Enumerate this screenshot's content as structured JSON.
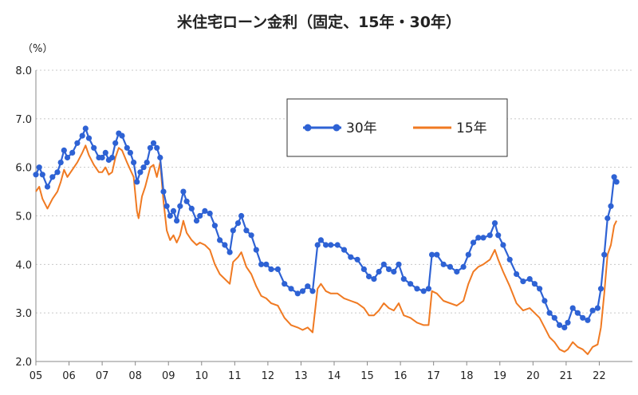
{
  "chart_data": {
    "type": "line",
    "title": "米住宅ローン金利（固定、15年・30年）",
    "unit_label": "（%）",
    "ylim": [
      2.0,
      8.0
    ],
    "y_ticks": [
      "2.0",
      "3.0",
      "4.0",
      "5.0",
      "6.0",
      "7.0",
      "8.0"
    ],
    "x_range": [
      2005,
      2023
    ],
    "x_ticks": [
      "05",
      "06",
      "07",
      "08",
      "09",
      "10",
      "11",
      "12",
      "13",
      "14",
      "15",
      "16",
      "17",
      "18",
      "19",
      "20",
      "21",
      "22"
    ],
    "grid": "horizontal-dotted",
    "legend_position": "top-right",
    "colors": {
      "series_30": "#2e62d4",
      "series_15": "#f07a22"
    },
    "series": [
      {
        "name": "30年",
        "marker": "circle",
        "points": [
          [
            2005.0,
            5.85
          ],
          [
            2005.1,
            6.0
          ],
          [
            2005.2,
            5.85
          ],
          [
            2005.35,
            5.6
          ],
          [
            2005.5,
            5.8
          ],
          [
            2005.65,
            5.9
          ],
          [
            2005.75,
            6.1
          ],
          [
            2005.85,
            6.35
          ],
          [
            2005.95,
            6.2
          ],
          [
            2006.1,
            6.3
          ],
          [
            2006.25,
            6.5
          ],
          [
            2006.4,
            6.65
          ],
          [
            2006.5,
            6.8
          ],
          [
            2006.6,
            6.6
          ],
          [
            2006.75,
            6.4
          ],
          [
            2006.9,
            6.2
          ],
          [
            2007.0,
            6.2
          ],
          [
            2007.1,
            6.3
          ],
          [
            2007.2,
            6.15
          ],
          [
            2007.3,
            6.2
          ],
          [
            2007.4,
            6.5
          ],
          [
            2007.5,
            6.7
          ],
          [
            2007.6,
            6.65
          ],
          [
            2007.75,
            6.4
          ],
          [
            2007.85,
            6.3
          ],
          [
            2007.95,
            6.1
          ],
          [
            2008.05,
            5.7
          ],
          [
            2008.15,
            5.9
          ],
          [
            2008.25,
            6.0
          ],
          [
            2008.35,
            6.1
          ],
          [
            2008.45,
            6.4
          ],
          [
            2008.55,
            6.5
          ],
          [
            2008.65,
            6.4
          ],
          [
            2008.75,
            6.2
          ],
          [
            2008.85,
            5.5
          ],
          [
            2008.95,
            5.2
          ],
          [
            2009.05,
            5.0
          ],
          [
            2009.15,
            5.1
          ],
          [
            2009.25,
            4.9
          ],
          [
            2009.35,
            5.2
          ],
          [
            2009.45,
            5.5
          ],
          [
            2009.55,
            5.3
          ],
          [
            2009.7,
            5.15
          ],
          [
            2009.85,
            4.9
          ],
          [
            2009.95,
            5.0
          ],
          [
            2010.1,
            5.1
          ],
          [
            2010.25,
            5.05
          ],
          [
            2010.4,
            4.8
          ],
          [
            2010.55,
            4.5
          ],
          [
            2010.7,
            4.4
          ],
          [
            2010.85,
            4.25
          ],
          [
            2010.95,
            4.7
          ],
          [
            2011.1,
            4.85
          ],
          [
            2011.2,
            5.0
          ],
          [
            2011.35,
            4.7
          ],
          [
            2011.5,
            4.6
          ],
          [
            2011.65,
            4.3
          ],
          [
            2011.8,
            4.0
          ],
          [
            2011.95,
            4.0
          ],
          [
            2012.1,
            3.9
          ],
          [
            2012.3,
            3.9
          ],
          [
            2012.5,
            3.6
          ],
          [
            2012.7,
            3.5
          ],
          [
            2012.9,
            3.4
          ],
          [
            2013.05,
            3.45
          ],
          [
            2013.2,
            3.55
          ],
          [
            2013.35,
            3.45
          ],
          [
            2013.5,
            4.4
          ],
          [
            2013.6,
            4.5
          ],
          [
            2013.75,
            4.4
          ],
          [
            2013.9,
            4.4
          ],
          [
            2014.1,
            4.4
          ],
          [
            2014.3,
            4.3
          ],
          [
            2014.5,
            4.15
          ],
          [
            2014.7,
            4.1
          ],
          [
            2014.9,
            3.9
          ],
          [
            2015.05,
            3.75
          ],
          [
            2015.2,
            3.7
          ],
          [
            2015.35,
            3.85
          ],
          [
            2015.5,
            4.0
          ],
          [
            2015.65,
            3.9
          ],
          [
            2015.8,
            3.85
          ],
          [
            2015.95,
            4.0
          ],
          [
            2016.1,
            3.7
          ],
          [
            2016.3,
            3.6
          ],
          [
            2016.5,
            3.5
          ],
          [
            2016.7,
            3.45
          ],
          [
            2016.85,
            3.5
          ],
          [
            2016.95,
            4.2
          ],
          [
            2017.1,
            4.2
          ],
          [
            2017.3,
            4.0
          ],
          [
            2017.5,
            3.95
          ],
          [
            2017.7,
            3.85
          ],
          [
            2017.9,
            3.95
          ],
          [
            2018.05,
            4.2
          ],
          [
            2018.2,
            4.45
          ],
          [
            2018.35,
            4.55
          ],
          [
            2018.5,
            4.55
          ],
          [
            2018.7,
            4.6
          ],
          [
            2018.85,
            4.85
          ],
          [
            2018.95,
            4.6
          ],
          [
            2019.1,
            4.4
          ],
          [
            2019.3,
            4.1
          ],
          [
            2019.5,
            3.8
          ],
          [
            2019.7,
            3.65
          ],
          [
            2019.9,
            3.7
          ],
          [
            2020.05,
            3.6
          ],
          [
            2020.2,
            3.5
          ],
          [
            2020.35,
            3.25
          ],
          [
            2020.5,
            3.0
          ],
          [
            2020.65,
            2.9
          ],
          [
            2020.8,
            2.75
          ],
          [
            2020.95,
            2.7
          ],
          [
            2021.05,
            2.8
          ],
          [
            2021.2,
            3.1
          ],
          [
            2021.35,
            3.0
          ],
          [
            2021.5,
            2.9
          ],
          [
            2021.65,
            2.85
          ],
          [
            2021.8,
            3.05
          ],
          [
            2021.95,
            3.1
          ],
          [
            2022.05,
            3.5
          ],
          [
            2022.15,
            4.2
          ],
          [
            2022.25,
            4.95
          ],
          [
            2022.35,
            5.2
          ],
          [
            2022.45,
            5.8
          ],
          [
            2022.52,
            5.7
          ]
        ]
      },
      {
        "name": "15年",
        "marker": "none",
        "points": [
          [
            2005.0,
            5.5
          ],
          [
            2005.1,
            5.6
          ],
          [
            2005.2,
            5.35
          ],
          [
            2005.35,
            5.15
          ],
          [
            2005.5,
            5.35
          ],
          [
            2005.65,
            5.5
          ],
          [
            2005.75,
            5.7
          ],
          [
            2005.85,
            5.95
          ],
          [
            2005.95,
            5.8
          ],
          [
            2006.1,
            5.95
          ],
          [
            2006.25,
            6.1
          ],
          [
            2006.4,
            6.3
          ],
          [
            2006.5,
            6.45
          ],
          [
            2006.6,
            6.25
          ],
          [
            2006.75,
            6.05
          ],
          [
            2006.9,
            5.9
          ],
          [
            2007.0,
            5.9
          ],
          [
            2007.1,
            6.0
          ],
          [
            2007.2,
            5.85
          ],
          [
            2007.3,
            5.9
          ],
          [
            2007.4,
            6.2
          ],
          [
            2007.5,
            6.4
          ],
          [
            2007.6,
            6.35
          ],
          [
            2007.75,
            6.1
          ],
          [
            2007.85,
            5.95
          ],
          [
            2007.95,
            5.8
          ],
          [
            2008.05,
            5.1
          ],
          [
            2008.1,
            4.95
          ],
          [
            2008.2,
            5.4
          ],
          [
            2008.3,
            5.6
          ],
          [
            2008.45,
            6.0
          ],
          [
            2008.55,
            6.05
          ],
          [
            2008.65,
            5.8
          ],
          [
            2008.75,
            6.1
          ],
          [
            2008.85,
            5.3
          ],
          [
            2008.95,
            4.7
          ],
          [
            2009.05,
            4.5
          ],
          [
            2009.15,
            4.6
          ],
          [
            2009.25,
            4.45
          ],
          [
            2009.35,
            4.6
          ],
          [
            2009.45,
            4.9
          ],
          [
            2009.55,
            4.65
          ],
          [
            2009.7,
            4.5
          ],
          [
            2009.85,
            4.4
          ],
          [
            2009.95,
            4.45
          ],
          [
            2010.1,
            4.4
          ],
          [
            2010.25,
            4.3
          ],
          [
            2010.4,
            4.0
          ],
          [
            2010.55,
            3.8
          ],
          [
            2010.7,
            3.7
          ],
          [
            2010.85,
            3.6
          ],
          [
            2010.95,
            4.05
          ],
          [
            2011.1,
            4.15
          ],
          [
            2011.2,
            4.25
          ],
          [
            2011.35,
            3.95
          ],
          [
            2011.5,
            3.8
          ],
          [
            2011.65,
            3.55
          ],
          [
            2011.8,
            3.35
          ],
          [
            2011.95,
            3.3
          ],
          [
            2012.1,
            3.2
          ],
          [
            2012.3,
            3.15
          ],
          [
            2012.5,
            2.9
          ],
          [
            2012.7,
            2.75
          ],
          [
            2012.9,
            2.7
          ],
          [
            2013.05,
            2.65
          ],
          [
            2013.2,
            2.7
          ],
          [
            2013.35,
            2.6
          ],
          [
            2013.5,
            3.5
          ],
          [
            2013.6,
            3.6
          ],
          [
            2013.75,
            3.45
          ],
          [
            2013.9,
            3.4
          ],
          [
            2014.1,
            3.4
          ],
          [
            2014.3,
            3.3
          ],
          [
            2014.5,
            3.25
          ],
          [
            2014.7,
            3.2
          ],
          [
            2014.9,
            3.1
          ],
          [
            2015.05,
            2.95
          ],
          [
            2015.2,
            2.95
          ],
          [
            2015.35,
            3.05
          ],
          [
            2015.5,
            3.2
          ],
          [
            2015.65,
            3.1
          ],
          [
            2015.8,
            3.05
          ],
          [
            2015.95,
            3.2
          ],
          [
            2016.1,
            2.95
          ],
          [
            2016.3,
            2.9
          ],
          [
            2016.5,
            2.8
          ],
          [
            2016.7,
            2.75
          ],
          [
            2016.85,
            2.75
          ],
          [
            2016.95,
            3.45
          ],
          [
            2017.1,
            3.4
          ],
          [
            2017.3,
            3.25
          ],
          [
            2017.5,
            3.2
          ],
          [
            2017.7,
            3.15
          ],
          [
            2017.9,
            3.25
          ],
          [
            2018.05,
            3.6
          ],
          [
            2018.2,
            3.85
          ],
          [
            2018.35,
            3.95
          ],
          [
            2018.5,
            4.0
          ],
          [
            2018.7,
            4.1
          ],
          [
            2018.85,
            4.3
          ],
          [
            2018.95,
            4.1
          ],
          [
            2019.1,
            3.85
          ],
          [
            2019.3,
            3.55
          ],
          [
            2019.5,
            3.2
          ],
          [
            2019.7,
            3.05
          ],
          [
            2019.9,
            3.1
          ],
          [
            2020.05,
            3.0
          ],
          [
            2020.2,
            2.9
          ],
          [
            2020.35,
            2.7
          ],
          [
            2020.5,
            2.5
          ],
          [
            2020.65,
            2.4
          ],
          [
            2020.8,
            2.25
          ],
          [
            2020.95,
            2.2
          ],
          [
            2021.05,
            2.25
          ],
          [
            2021.2,
            2.4
          ],
          [
            2021.35,
            2.3
          ],
          [
            2021.5,
            2.25
          ],
          [
            2021.65,
            2.15
          ],
          [
            2021.8,
            2.3
          ],
          [
            2021.95,
            2.35
          ],
          [
            2022.05,
            2.7
          ],
          [
            2022.15,
            3.4
          ],
          [
            2022.25,
            4.2
          ],
          [
            2022.35,
            4.4
          ],
          [
            2022.45,
            4.8
          ],
          [
            2022.52,
            4.9
          ]
        ]
      }
    ]
  }
}
